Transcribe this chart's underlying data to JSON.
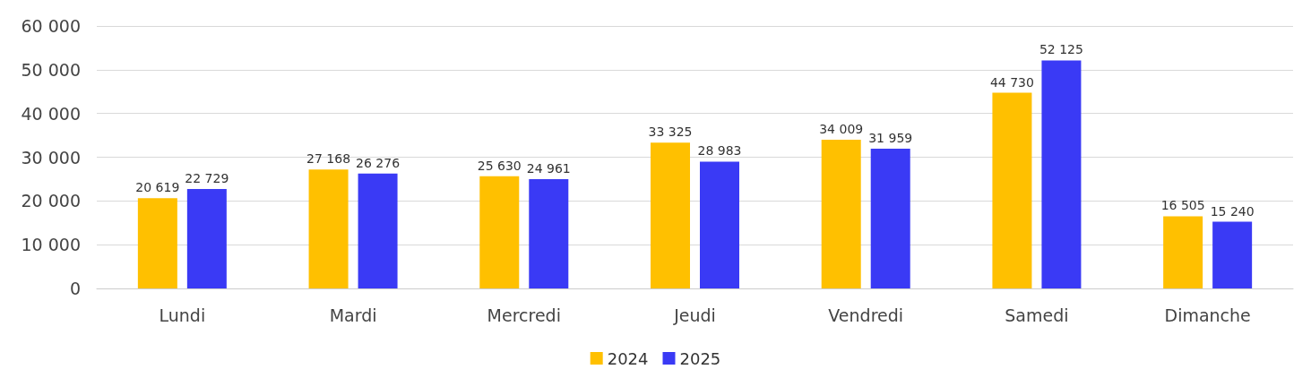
{
  "chart_data": {
    "type": "bar",
    "categories": [
      "Lundi",
      "Mardi",
      "Mercredi",
      "Jeudi",
      "Vendredi",
      "Samedi",
      "Dimanche"
    ],
    "series": [
      {
        "name": "2024",
        "color": "#ffc000",
        "values": [
          20619,
          27168,
          25630,
          33325,
          34009,
          44730,
          16505
        ],
        "value_labels": [
          "20 619",
          "27 168",
          "25 630",
          "33 325",
          "34 009",
          "44 730",
          "16 505"
        ]
      },
      {
        "name": "2025",
        "color": "#3a3af5",
        "values": [
          22729,
          26276,
          24961,
          28983,
          31959,
          52125,
          15240
        ],
        "value_labels": [
          "22 729",
          "26 276",
          "24 961",
          "28 983",
          "31 959",
          "52 125",
          "15 240"
        ]
      }
    ],
    "ylim": [
      0,
      60000
    ],
    "yticks": [
      {
        "value": 0,
        "label": "0"
      },
      {
        "value": 10000,
        "label": "10 000"
      },
      {
        "value": 20000,
        "label": "20 000"
      },
      {
        "value": 30000,
        "label": "30 000"
      },
      {
        "value": 40000,
        "label": "40 000"
      },
      {
        "value": 50000,
        "label": "50 000"
      },
      {
        "value": 60000,
        "label": "60 000"
      }
    ],
    "grid": "y",
    "legend": "bottom"
  }
}
